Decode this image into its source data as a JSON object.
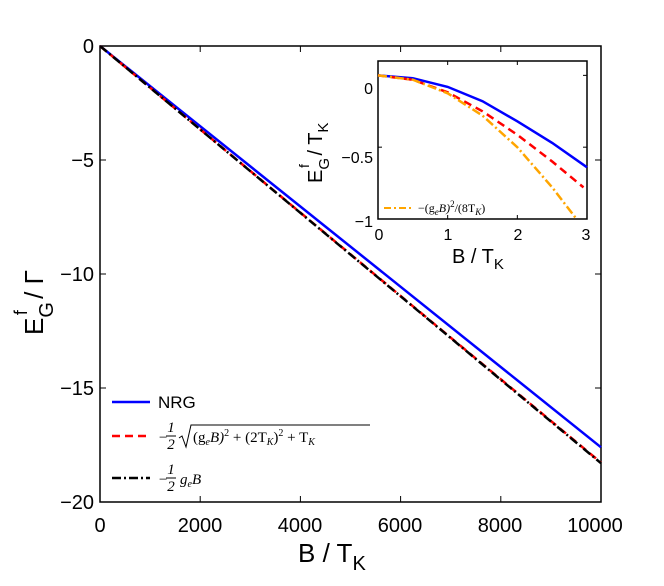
{
  "chart_data": [
    {
      "type": "line",
      "role": "main",
      "title": "",
      "xlabel": {
        "main": "B / T",
        "sub": "K"
      },
      "ylabel": {
        "main": "E",
        "sup": "f",
        "sub": "G",
        "tail": " / Γ"
      },
      "xlim": [
        0,
        10000
      ],
      "ylim": [
        -20,
        0
      ],
      "xticks": [
        0,
        2000,
        4000,
        6000,
        8000,
        10000
      ],
      "xtick_labels": [
        "0",
        "2000",
        "4000",
        "6000",
        "8000",
        "10000"
      ],
      "yticks": [
        0,
        -5,
        -10,
        -15,
        -20
      ],
      "ytick_labels": [
        "0",
        "−5",
        "−10",
        "−15",
        "−20"
      ],
      "legend_position": "bottom-left",
      "series": [
        {
          "name": "NRG",
          "legend_label": "NRG",
          "color": "#0000ff",
          "style": "solid",
          "x": [
            0,
            10000
          ],
          "y": [
            0,
            -17.6
          ]
        },
        {
          "name": "sqrt",
          "legend_label": "−½√((g_e B)² + (2T_K)²) + T_K",
          "legend_parts": {
            "minus": "−",
            "num": "1",
            "den": "2",
            "radicand": "(g",
            "e": "e",
            "b2": "B)",
            "sq1": "2",
            "plus": " + (2T",
            "k": "K",
            "close": ")",
            "sq2": "2",
            "tail": " + T",
            "k2": "K"
          },
          "color": "#ff0000",
          "style": "dashed",
          "x": [
            0,
            10000
          ],
          "y": [
            0,
            -18.27
          ]
        },
        {
          "name": "linear",
          "legend_label": "−½ g_e B",
          "legend_parts": {
            "minus": "−",
            "num": "1",
            "den": "2",
            "g": "g",
            "e": "e",
            "b": "B"
          },
          "color": "#000000",
          "style": "dashdot",
          "x": [
            0,
            10000
          ],
          "y": [
            0,
            -18.3
          ]
        }
      ]
    },
    {
      "type": "line",
      "role": "inset",
      "title": "",
      "xlabel": {
        "main": "B / T",
        "sub": "K"
      },
      "ylabel": {
        "main": "E",
        "sup": "f",
        "sub": "G",
        "tail": " / T",
        "tailsub": "K"
      },
      "xlim": [
        0,
        3
      ],
      "ylim": [
        -1,
        0.1
      ],
      "xticks": [
        0,
        1,
        2,
        3
      ],
      "xtick_labels": [
        "0",
        "1",
        "2",
        "3"
      ],
      "yticks": [
        0,
        -0.5,
        -1
      ],
      "ytick_labels": [
        "0",
        "−0.5",
        "−1"
      ],
      "legend_position": "bottom-left",
      "series": [
        {
          "name": "NRG",
          "color": "#0000ff",
          "style": "solid",
          "x": [
            0,
            0.5,
            1.0,
            1.5,
            2.0,
            2.5,
            3.0
          ],
          "y": [
            0,
            -0.02,
            -0.08,
            -0.18,
            -0.32,
            -0.47,
            -0.64
          ]
        },
        {
          "name": "sqrt",
          "color": "#ff0000",
          "style": "dashed",
          "x": [
            0,
            0.5,
            1.0,
            1.5,
            2.0,
            2.5,
            2.95
          ],
          "y": [
            0,
            -0.031,
            -0.118,
            -0.25,
            -0.414,
            -0.6,
            -0.78
          ]
        },
        {
          "name": "quadratic",
          "legend_label": "−(g_e B)²/(8T_K)",
          "legend_parts": {
            "open": "−(g",
            "e": "e",
            "b": "B)",
            "sq": "2",
            "mid": "/(8T",
            "k": "K",
            "close": ")"
          },
          "color": "#ffa500",
          "style": "dashdot",
          "x": [
            0,
            0.5,
            1.0,
            1.5,
            2.0,
            2.5,
            2.85
          ],
          "y": [
            0,
            -0.03,
            -0.125,
            -0.28,
            -0.5,
            -0.78,
            -1.0
          ]
        }
      ]
    }
  ]
}
